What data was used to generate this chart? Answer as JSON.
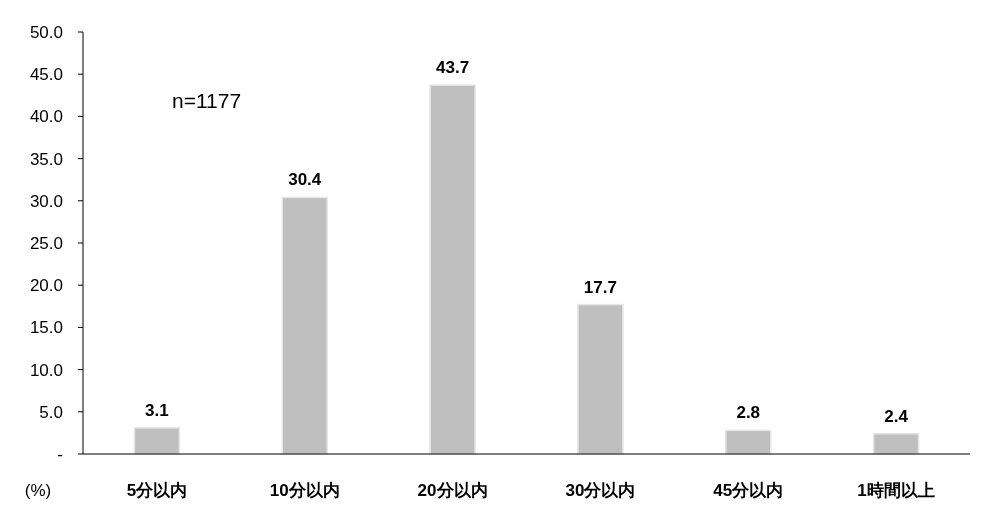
{
  "chart_data": {
    "type": "bar",
    "ylabel": "(%)",
    "annotations": [
      "n=1177"
    ],
    "categories": [
      "5分以内",
      "10分以内",
      "20分以内",
      "30分以内",
      "45分以内",
      "1時間以上"
    ],
    "values": [
      3.1,
      30.4,
      43.7,
      17.7,
      2.8,
      2.4
    ],
    "color": "#bfbfbf",
    "ylim": [
      0,
      50
    ],
    "yticks": [
      {
        "value": 0,
        "label": "-"
      },
      {
        "value": 5,
        "label": "5.0"
      },
      {
        "value": 10,
        "label": "10.0"
      },
      {
        "value": 15,
        "label": "15.0"
      },
      {
        "value": 20,
        "label": "20.0"
      },
      {
        "value": 25,
        "label": "25.0"
      },
      {
        "value": 30,
        "label": "30.0"
      },
      {
        "value": 35,
        "label": "35.0"
      },
      {
        "value": 40,
        "label": "40.0"
      },
      {
        "value": 45,
        "label": "45.0"
      },
      {
        "value": 50,
        "label": "50.0"
      }
    ],
    "data_labels": true
  }
}
